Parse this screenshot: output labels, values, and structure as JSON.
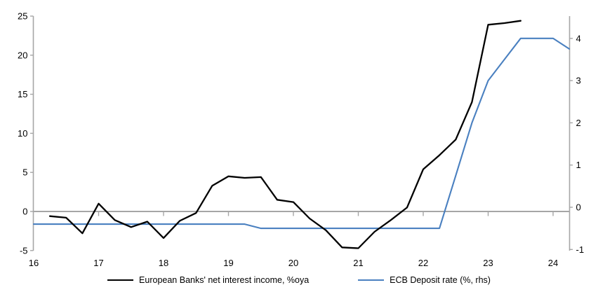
{
  "chart_data": {
    "type": "line",
    "title": "",
    "xlabel": "",
    "ylabel_left": "",
    "ylabel_right": "",
    "x_axis": {
      "ticks": [
        16,
        17,
        18,
        19,
        20,
        21,
        22,
        23,
        24
      ],
      "range": [
        16,
        24.3
      ]
    },
    "left_axis": {
      "ticks": [
        -5,
        0,
        5,
        10,
        15,
        20,
        25
      ],
      "range": [
        -5,
        25
      ]
    },
    "right_axis": {
      "ticks": [
        -1,
        0,
        1,
        2,
        3,
        4
      ],
      "range": [
        -1.1,
        4.6
      ]
    },
    "grid": "zero-line-only",
    "legend_position": "bottom-center",
    "axis_color": "#a6a6a6",
    "series": [
      {
        "name": "European Banks' net interest income, %oya",
        "color": "#000000",
        "axis": "left",
        "x": [
          16.25,
          16.5,
          16.75,
          17.0,
          17.25,
          17.5,
          17.75,
          18.0,
          18.25,
          18.5,
          18.75,
          19.0,
          19.25,
          19.5,
          19.75,
          20.0,
          20.25,
          20.5,
          20.75,
          21.0,
          21.25,
          21.5,
          21.75,
          22.0,
          22.25,
          22.5,
          22.75,
          23.0,
          23.25,
          23.5
        ],
        "y": [
          -0.6,
          -0.8,
          -2.8,
          1.0,
          -1.1,
          -2.0,
          -1.3,
          -3.4,
          -1.2,
          -0.2,
          3.3,
          4.5,
          4.3,
          4.4,
          1.5,
          1.2,
          -0.9,
          -2.4,
          -4.6,
          -4.7,
          -2.6,
          -1.1,
          0.5,
          5.4,
          7.2,
          9.2,
          14.0,
          23.9,
          24.1,
          24.4
        ]
      },
      {
        "name": "ECB Deposit rate (%, rhs)",
        "color": "#4a80c0",
        "axis": "right",
        "x": [
          16.0,
          19.25,
          19.5,
          22.25,
          22.5,
          22.75,
          23.0,
          23.25,
          23.5,
          23.75,
          24.0,
          24.25
        ],
        "y": [
          -0.4,
          -0.4,
          -0.5,
          -0.5,
          0.75,
          2.0,
          3.0,
          3.5,
          4.0,
          4.0,
          4.0,
          3.75
        ]
      }
    ]
  },
  "legend": {
    "items": [
      {
        "label": "European Banks' net interest income, %oya",
        "color": "#000000"
      },
      {
        "label": "ECB Deposit rate (%, rhs)",
        "color": "#4a80c0"
      }
    ]
  }
}
